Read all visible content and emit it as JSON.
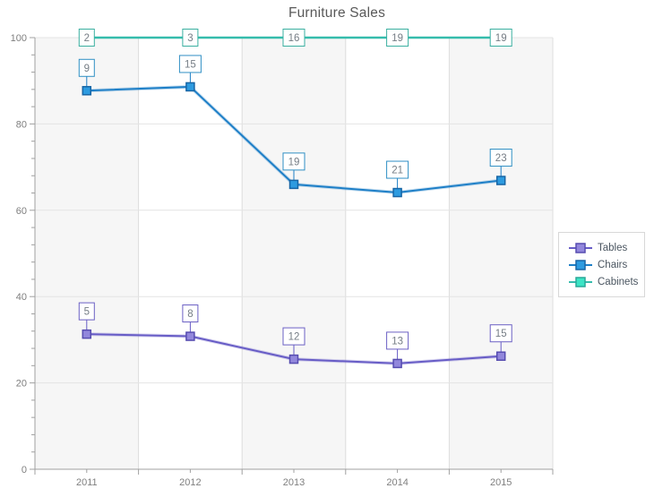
{
  "chart_data": {
    "type": "line",
    "title": "Furniture Sales",
    "x_categories": [
      "2011",
      "2012",
      "2013",
      "2014",
      "2015"
    ],
    "y_axis": {
      "min": 0,
      "max": 100,
      "major_step": 20,
      "minor_step": 4,
      "tick_labels": [
        "0",
        "20",
        "40",
        "60",
        "80",
        "100"
      ]
    },
    "series": [
      {
        "name": "Tables",
        "line_color": "#675CC6",
        "marker_fill": "#9287DC",
        "marker_border": "#564CB0",
        "label_border": "#6B60C4",
        "y_values": [
          31.3,
          30.8,
          25.5,
          24.5,
          26.2
        ],
        "point_labels": [
          "5",
          "8",
          "12",
          "13",
          "15"
        ],
        "label_mode": "above"
      },
      {
        "name": "Chairs",
        "line_color": "#1E7FC7",
        "marker_fill": "#2D9BE0",
        "marker_border": "#1765A5",
        "label_border": "#2F8FC4",
        "y_values": [
          87.7,
          88.6,
          66.0,
          64.1,
          66.9
        ],
        "point_labels": [
          "9",
          "15",
          "19",
          "21",
          "23"
        ],
        "label_mode": "above"
      },
      {
        "name": "Cabinets",
        "line_color": "#35BCAC",
        "marker_fill": "#3CE4C5",
        "marker_border": "#28A898",
        "label_border": "#3AAFA0",
        "y_values": [
          100,
          100,
          100,
          100,
          100
        ],
        "point_labels": [
          "2",
          "3",
          "16",
          "19",
          "19"
        ],
        "label_mode": "on"
      }
    ],
    "legend": {
      "position": "right",
      "items": [
        "Tables",
        "Chairs",
        "Cabinets"
      ]
    },
    "plot_style": {
      "band_color_odd": "#F6F6F6",
      "band_color_even": "#FFFFFF",
      "grid_color_h": "#E4E4E4",
      "grid_color_v": "#DDDDDD",
      "axis_color": "#A0A0A0",
      "axis_text_color": "#7F7F7F",
      "label_text_color": "#757D85",
      "title_color": "#595959",
      "grid": true
    }
  }
}
